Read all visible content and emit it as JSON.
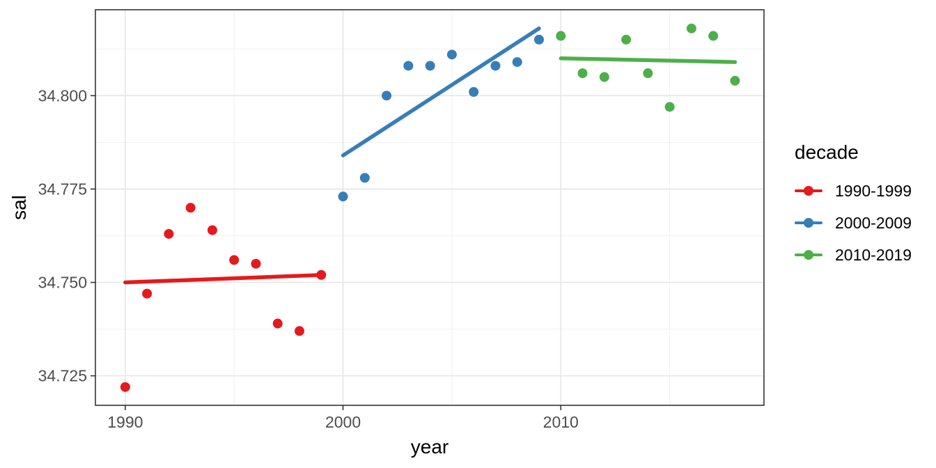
{
  "chart_data": {
    "type": "scatter",
    "title": "",
    "xlabel": "year",
    "ylabel": "sal",
    "x_domain": [
      1988.63,
      2019.33
    ],
    "y_domain": [
      34.7171,
      34.823
    ],
    "x_ticks": [
      {
        "value": 1990,
        "label": "1990"
      },
      {
        "value": 2000,
        "label": "2000"
      },
      {
        "value": 2010,
        "label": "2010"
      }
    ],
    "x_minor_ticks": [
      1995,
      2005,
      2015
    ],
    "y_ticks": [
      {
        "value": 34.725,
        "label": "34.725"
      },
      {
        "value": 34.75,
        "label": "34.750"
      },
      {
        "value": 34.775,
        "label": "34.775"
      },
      {
        "value": 34.8,
        "label": "34.800"
      }
    ],
    "y_minor_ticks": [
      34.7375,
      34.7625,
      34.7875,
      34.8125
    ],
    "grid": "major+minor",
    "legend": {
      "title": "decade",
      "position": "right"
    },
    "point_radius": 7,
    "series": [
      {
        "name": "1990-1999",
        "color": "#E41A1C",
        "x": [
          1990,
          1991,
          1992,
          1993,
          1994,
          1995,
          1996,
          1997,
          1998,
          1999
        ],
        "y": [
          34.722,
          34.747,
          34.763,
          34.77,
          34.764,
          34.756,
          34.755,
          34.739,
          34.737,
          34.752
        ],
        "trend": {
          "x": [
            1990,
            1999
          ],
          "y": [
            34.75,
            34.752
          ]
        }
      },
      {
        "name": "2000-2009",
        "color": "#377EB8",
        "x": [
          2000,
          2001,
          2002,
          2003,
          2004,
          2005,
          2006,
          2007,
          2008,
          2009
        ],
        "y": [
          34.773,
          34.778,
          34.8,
          34.808,
          34.808,
          34.811,
          34.801,
          34.808,
          34.809,
          34.815
        ],
        "trend": {
          "x": [
            2000,
            2009
          ],
          "y": [
            34.784,
            34.818
          ]
        }
      },
      {
        "name": "2010-2019",
        "color": "#4DAF4A",
        "x": [
          2010,
          2011,
          2012,
          2013,
          2014,
          2015,
          2016,
          2017,
          2018
        ],
        "y": [
          34.816,
          34.806,
          34.805,
          34.815,
          34.806,
          34.797,
          34.818,
          34.816,
          34.804
        ],
        "trend": {
          "x": [
            2010,
            2018
          ],
          "y": [
            34.81,
            34.809
          ]
        }
      }
    ],
    "colors": {
      "panel_background": "#FFFFFF",
      "grid_major": "#E6E6E6",
      "grid_minor": "#F0F0F0",
      "panel_border": "#333333",
      "tick": "#333333",
      "tick_label": "#4D4D4D",
      "text": "#000000"
    }
  }
}
